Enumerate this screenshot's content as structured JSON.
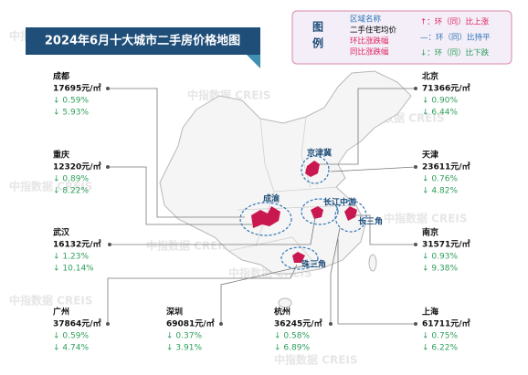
{
  "title": "2024年6月十大城市二手房价格地图",
  "legend": {
    "heading": "图例",
    "items": [
      "区域名称",
      "二手住宅均价",
      "环比涨跌幅",
      "同比涨跌幅"
    ],
    "symbols": [
      "↑：环（同）比上涨",
      "—：环（同）比持平",
      "↓：环（同）比下跌"
    ]
  },
  "regions": [
    "京津冀",
    "成渝",
    "长江中游",
    "长三角",
    "珠三角"
  ],
  "watermark": "中指数据 CREIS",
  "cities": [
    {
      "name": "成都",
      "price": "17695元/㎡",
      "mom": "↓ 0.59%",
      "yoy": "↓ 5.93%"
    },
    {
      "name": "重庆",
      "price": "12320元/㎡",
      "mom": "↓ 0.89%",
      "yoy": "↓ 8.22%"
    },
    {
      "name": "武汉",
      "price": "16132元/㎡",
      "mom": "↓ 1.23%",
      "yoy": "↓ 10.14%"
    },
    {
      "name": "广州",
      "price": "37864元/㎡",
      "mom": "↓ 0.59%",
      "yoy": "↓ 4.74%"
    },
    {
      "name": "深圳",
      "price": "69081元/㎡",
      "mom": "↓ 0.37%",
      "yoy": "↓ 3.91%"
    },
    {
      "name": "杭州",
      "price": "36245元/㎡",
      "mom": "↓ 0.58%",
      "yoy": "↓ 6.89%"
    },
    {
      "name": "北京",
      "price": "71366元/㎡",
      "mom": "↓ 0.90%",
      "yoy": "↓ 6.44%"
    },
    {
      "name": "天津",
      "price": "23611元/㎡",
      "mom": "↓ 0.76%",
      "yoy": "↓ 4.82%"
    },
    {
      "name": "南京",
      "price": "31571元/㎡",
      "mom": "↓ 0.93%",
      "yoy": "↓ 9.38%"
    },
    {
      "name": "上海",
      "price": "61711元/㎡",
      "mom": "↓ 0.75%",
      "yoy": "↓ 6.22%"
    }
  ]
}
